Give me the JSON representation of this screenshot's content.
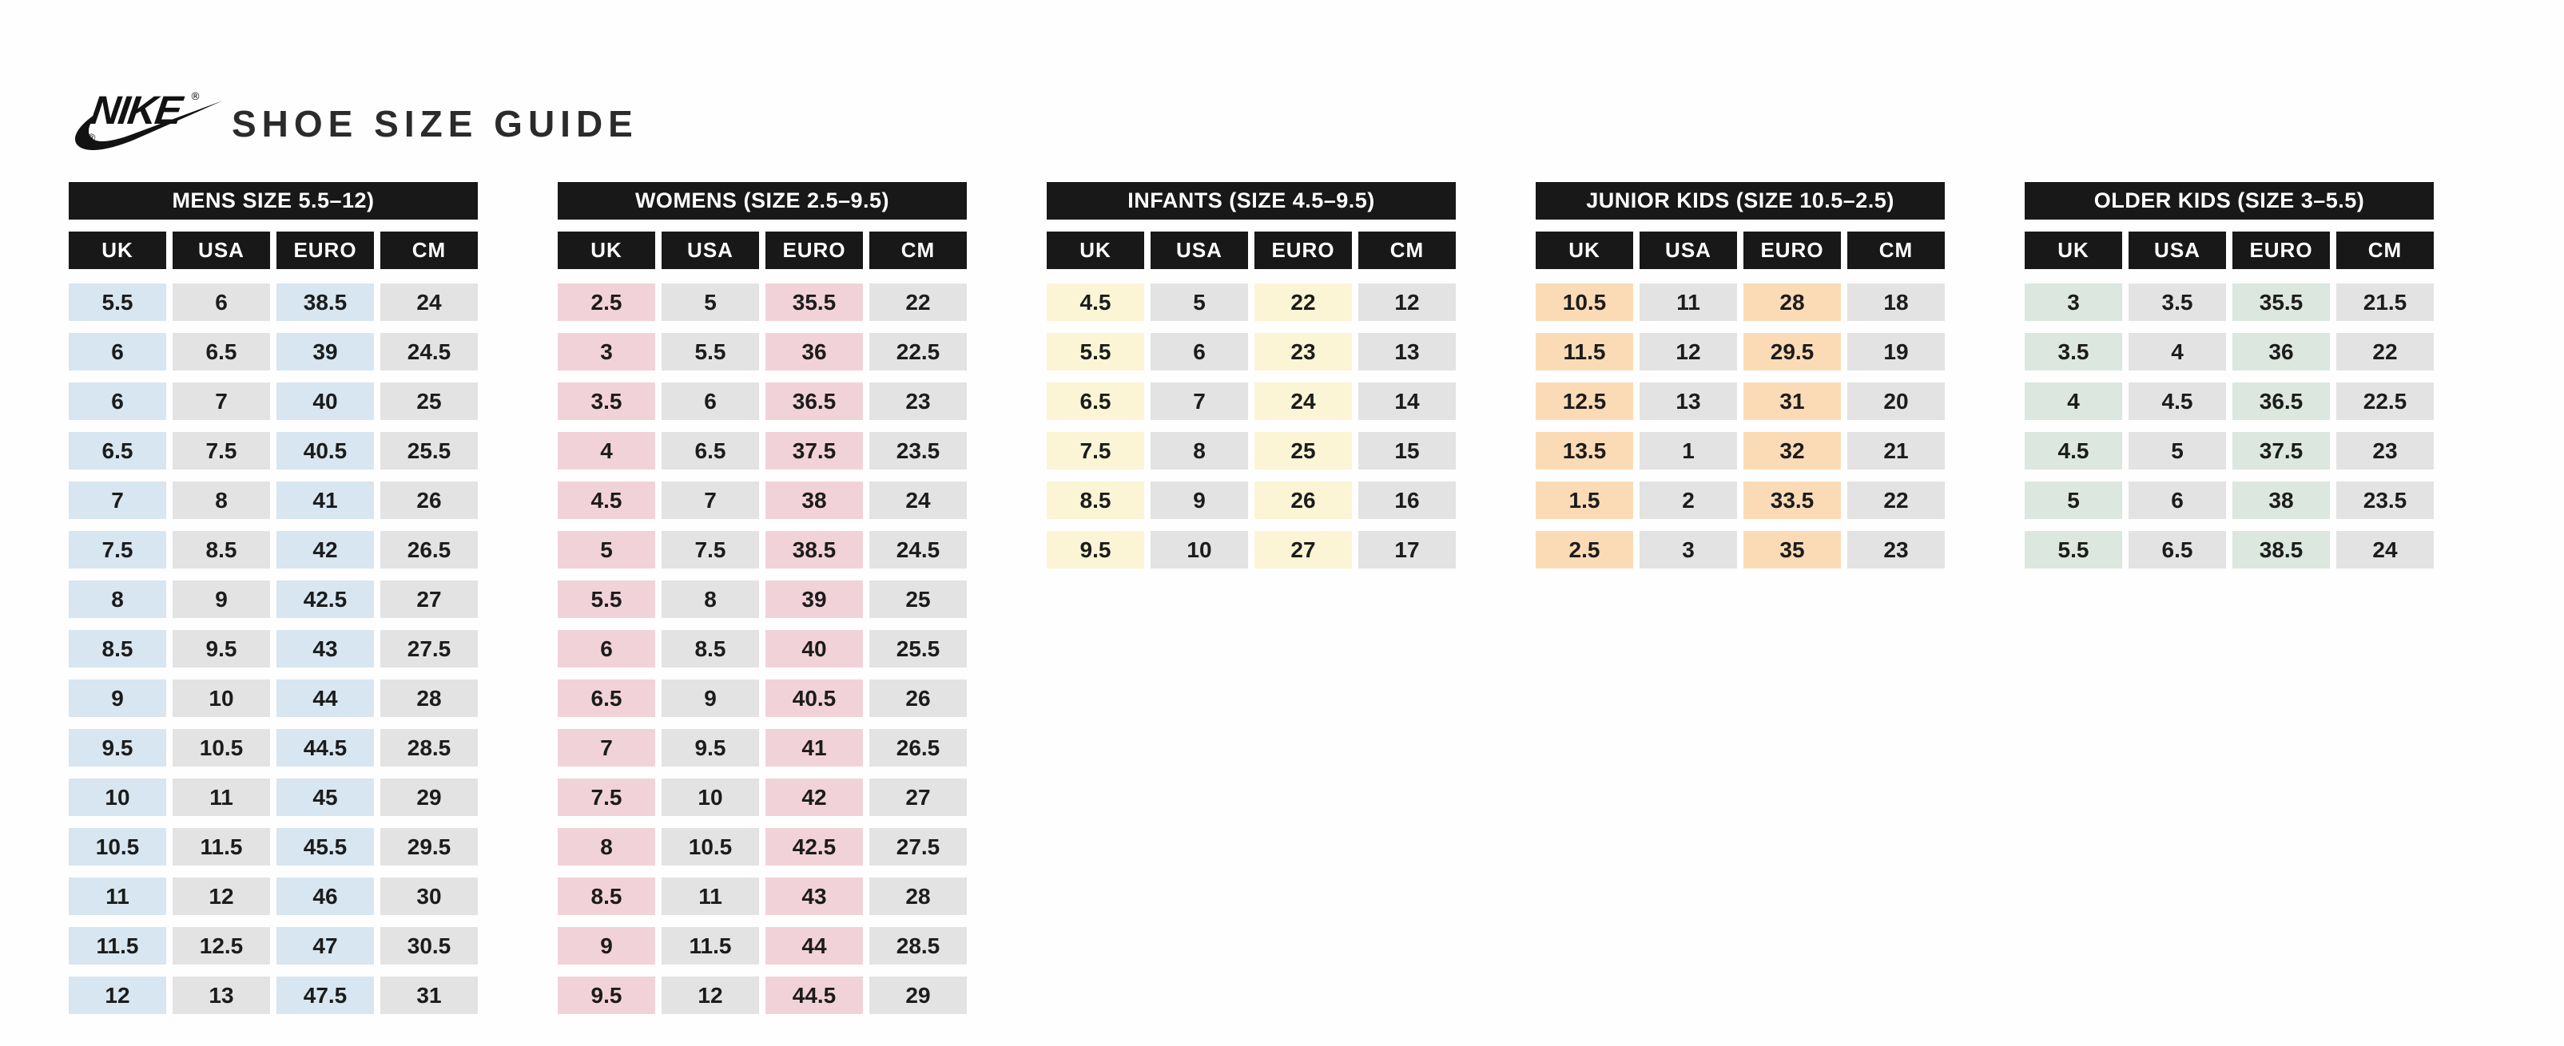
{
  "header": {
    "brand": "NIKE",
    "registered": "®",
    "title": "SHOE SIZE GUIDE"
  },
  "columns": [
    "UK",
    "USA",
    "EURO",
    "CM"
  ],
  "colors": {
    "background": "#fefefe",
    "header_bar": "#181818",
    "header_text": "#ffffff",
    "cell_text": "#1c1c1c",
    "cell_gray": "#e3e3e3",
    "title_text": "#2b2b2b",
    "logo_black": "#121212"
  },
  "tables": [
    {
      "id": "mens",
      "title": "MENS SIZE 5.5–12)",
      "accent": "#d7e6f0",
      "rows": [
        [
          "5.5",
          "6",
          "38.5",
          "24"
        ],
        [
          "6",
          "6.5",
          "39",
          "24.5"
        ],
        [
          "6",
          "7",
          "40",
          "25"
        ],
        [
          "6.5",
          "7.5",
          "40.5",
          "25.5"
        ],
        [
          "7",
          "8",
          "41",
          "26"
        ],
        [
          "7.5",
          "8.5",
          "42",
          "26.5"
        ],
        [
          "8",
          "9",
          "42.5",
          "27"
        ],
        [
          "8.5",
          "9.5",
          "43",
          "27.5"
        ],
        [
          "9",
          "10",
          "44",
          "28"
        ],
        [
          "9.5",
          "10.5",
          "44.5",
          "28.5"
        ],
        [
          "10",
          "11",
          "45",
          "29"
        ],
        [
          "10.5",
          "11.5",
          "45.5",
          "29.5"
        ],
        [
          "11",
          "12",
          "46",
          "30"
        ],
        [
          "11.5",
          "12.5",
          "47",
          "30.5"
        ],
        [
          "12",
          "13",
          "47.5",
          "31"
        ]
      ]
    },
    {
      "id": "womens",
      "title": "WOMENS (SIZE 2.5–9.5)",
      "accent": "#f2d2d9",
      "rows": [
        [
          "2.5",
          "5",
          "35.5",
          "22"
        ],
        [
          "3",
          "5.5",
          "36",
          "22.5"
        ],
        [
          "3.5",
          "6",
          "36.5",
          "23"
        ],
        [
          "4",
          "6.5",
          "37.5",
          "23.5"
        ],
        [
          "4.5",
          "7",
          "38",
          "24"
        ],
        [
          "5",
          "7.5",
          "38.5",
          "24.5"
        ],
        [
          "5.5",
          "8",
          "39",
          "25"
        ],
        [
          "6",
          "8.5",
          "40",
          "25.5"
        ],
        [
          "6.5",
          "9",
          "40.5",
          "26"
        ],
        [
          "7",
          "9.5",
          "41",
          "26.5"
        ],
        [
          "7.5",
          "10",
          "42",
          "27"
        ],
        [
          "8",
          "10.5",
          "42.5",
          "27.5"
        ],
        [
          "8.5",
          "11",
          "43",
          "28"
        ],
        [
          "9",
          "11.5",
          "44",
          "28.5"
        ],
        [
          "9.5",
          "12",
          "44.5",
          "29"
        ]
      ]
    },
    {
      "id": "infants",
      "title": "INFANTS (SIZE 4.5–9.5)",
      "accent": "#fbf5d5",
      "rows": [
        [
          "4.5",
          "5",
          "22",
          "12"
        ],
        [
          "5.5",
          "6",
          "23",
          "13"
        ],
        [
          "6.5",
          "7",
          "24",
          "14"
        ],
        [
          "7.5",
          "8",
          "25",
          "15"
        ],
        [
          "8.5",
          "9",
          "26",
          "16"
        ],
        [
          "9.5",
          "10",
          "27",
          "17"
        ]
      ]
    },
    {
      "id": "junior-kids",
      "title": "JUNIOR KIDS (SIZE 10.5–2.5)",
      "accent": "#fbdbb6",
      "rows": [
        [
          "10.5",
          "11",
          "28",
          "18"
        ],
        [
          "11.5",
          "12",
          "29.5",
          "19"
        ],
        [
          "12.5",
          "13",
          "31",
          "20"
        ],
        [
          "13.5",
          "1",
          "32",
          "21"
        ],
        [
          "1.5",
          "2",
          "33.5",
          "22"
        ],
        [
          "2.5",
          "3",
          "35",
          "23"
        ]
      ]
    },
    {
      "id": "older-kids",
      "title": "OLDER KIDS (SIZE 3–5.5)",
      "accent": "#dbe7df",
      "rows": [
        [
          "3",
          "3.5",
          "35.5",
          "21.5"
        ],
        [
          "3.5",
          "4",
          "36",
          "22"
        ],
        [
          "4",
          "4.5",
          "36.5",
          "22.5"
        ],
        [
          "4.5",
          "5",
          "37.5",
          "23"
        ],
        [
          "5",
          "6",
          "38",
          "23.5"
        ],
        [
          "5.5",
          "6.5",
          "38.5",
          "24"
        ]
      ]
    }
  ]
}
